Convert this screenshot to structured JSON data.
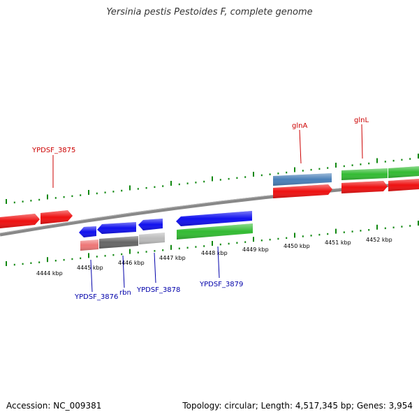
{
  "title": "Yersinia pestis Pestoides F, complete genome",
  "footer": {
    "accession": "Accession: NC_009381",
    "summary": "Topology: circular; Length: 4,517,345 bp; Genes: 3,954"
  },
  "colors": {
    "red": "#ee1111",
    "blue": "#1111ee",
    "green": "#33bb33",
    "steelblue": "#4a80b8",
    "salmon": "#ee7777",
    "darkgray": "#666666",
    "lightgray": "#bbbbbb",
    "backbone": "#888888",
    "tick": "#118811",
    "top_label": "#cc0000",
    "bottom_label": "#0000aa"
  },
  "scale_labels": [
    "4444 kbp",
    "4445 kbp",
    "4446 kbp",
    "4447 kbp",
    "4448 kbp",
    "4449 kbp",
    "4450 kbp",
    "4451 kbp",
    "4452 kbp"
  ],
  "top_gene_labels": [
    "YPDSF_3875",
    "glnA",
    "glnL"
  ],
  "bottom_gene_labels": [
    "YPDSF_3876",
    "rbn",
    "YPDSF_3878",
    "YPDSF_3879"
  ]
}
